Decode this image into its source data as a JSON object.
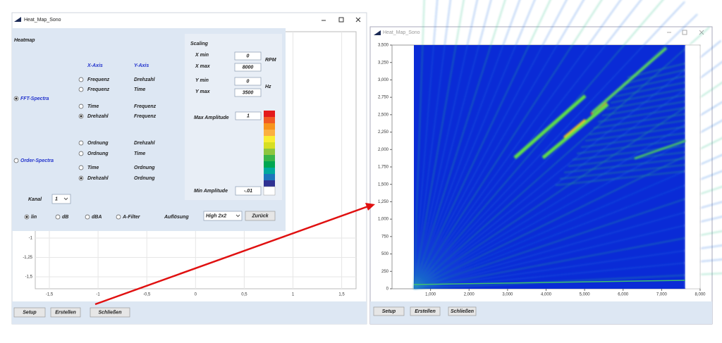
{
  "left_window": {
    "title": "Heat_Map_Sono",
    "panel": {
      "heading": "Heatmap",
      "x_axis_header": "X-Axis",
      "y_axis_header": "Y-Axis",
      "fft": {
        "label": "FFT-Spectra",
        "checked": true,
        "rows": [
          {
            "x": "Frequenz",
            "y": "Drehzahl",
            "checked": false
          },
          {
            "x": "Frequenz",
            "y": "Time",
            "checked": false
          },
          {
            "x": "Time",
            "y": "Frequenz",
            "checked": false
          },
          {
            "x": "Drehzahl",
            "y": "Frequenz",
            "checked": true
          }
        ]
      },
      "order": {
        "label": "Order-Spectra",
        "checked": false,
        "rows": [
          {
            "x": "Ordnung",
            "y": "Drehzahl",
            "checked": false
          },
          {
            "x": "Ordnung",
            "y": "Time",
            "checked": false
          },
          {
            "x": "Time",
            "y": "Ordnung",
            "checked": false
          },
          {
            "x": "Drehzahl",
            "y": "Ordnung",
            "checked": true
          }
        ]
      },
      "kanal": {
        "label": "Kanal",
        "value": "1"
      },
      "modes": [
        {
          "label": "lin",
          "checked": true
        },
        {
          "label": "dB",
          "checked": false
        },
        {
          "label": "dBA",
          "checked": false
        },
        {
          "label": "A-Filter",
          "checked": false
        }
      ],
      "aufloesung": {
        "label": "Auflösung",
        "value": "High 2x2"
      },
      "back_button": "Zurück",
      "scaling": {
        "heading": "Scaling",
        "fields": [
          {
            "label": "X min",
            "value": "0"
          },
          {
            "label": "X max",
            "value": "8000"
          },
          {
            "label": "Y min",
            "value": "0"
          },
          {
            "label": "Y max",
            "value": "3500"
          }
        ],
        "x_unit": "RPM",
        "y_unit": "Hz",
        "max_amplitude": {
          "label": "Max Amplitude",
          "value": "1"
        },
        "min_amplitude": {
          "label": "Min Amplitude",
          "value": "-.01"
        }
      }
    },
    "plot": {
      "yticks": [
        "-1",
        "-1,25",
        "-1,5"
      ],
      "xticks": [
        "-1,5",
        "-1",
        "-0,5",
        "0",
        "0,5",
        "1",
        "1,5"
      ]
    },
    "buttons": [
      "Setup",
      "Erstellen",
      "Schließen"
    ]
  },
  "right_window": {
    "title": "Heat_Map_Sono",
    "plot": {
      "yticks": [
        "3,500",
        "3,250",
        "3,000",
        "2,750",
        "2,500",
        "2,250",
        "2,000",
        "1,750",
        "1,500",
        "1,250",
        "1,000",
        "750",
        "500",
        "250",
        "0"
      ],
      "xticks": [
        "1,000",
        "2,000",
        "3,000",
        "4,000",
        "5,000",
        "6,000",
        "7,000",
        "8,000"
      ]
    },
    "buttons": [
      "Setup",
      "Erstellen",
      "Schließen"
    ]
  }
}
